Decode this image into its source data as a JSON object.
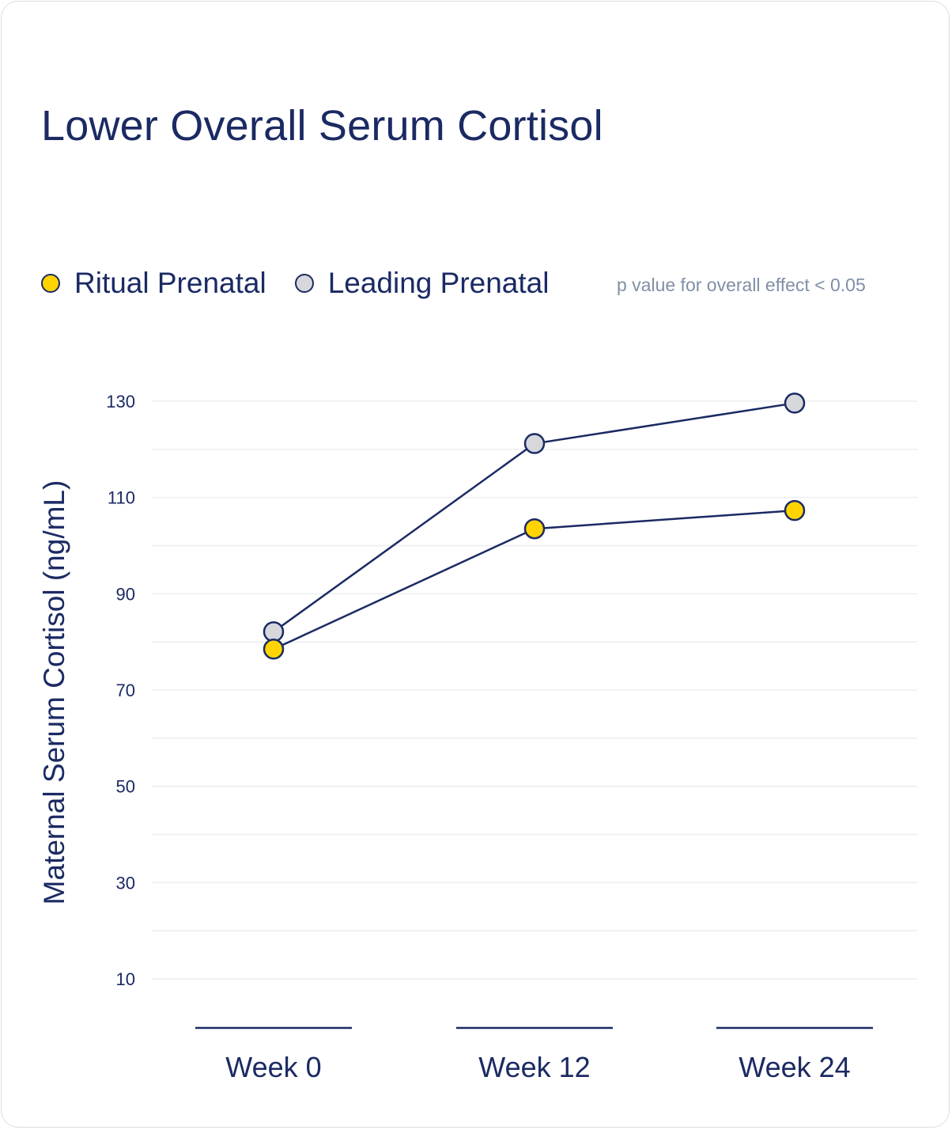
{
  "colors": {
    "navy": "#1b2a63",
    "ritual": "#ffd400",
    "leading": "#d7d8dc",
    "grid": "#eceef1",
    "note": "#7f8fa6"
  },
  "chart_data": {
    "type": "line",
    "title": "Lower Overall Serum Cortisol",
    "note": "p value for overall effect < 0.05",
    "ylabel": "Maternal Serum Cortisol (ng/mL)",
    "xlabel": "",
    "categories": [
      "Week 0",
      "Week 12",
      "Week 24"
    ],
    "yticks": [
      10,
      30,
      50,
      70,
      90,
      110,
      130
    ],
    "ylim": [
      10,
      130
    ],
    "grid": true,
    "legend_position": "top-left",
    "series": [
      {
        "name": "Ritual Prenatal",
        "color": "#ffd400",
        "values": [
          78.5,
          103.5,
          107.3
        ]
      },
      {
        "name": "Leading Prenatal",
        "color": "#d7d8dc",
        "values": [
          82.1,
          121.2,
          129.6
        ]
      }
    ]
  }
}
